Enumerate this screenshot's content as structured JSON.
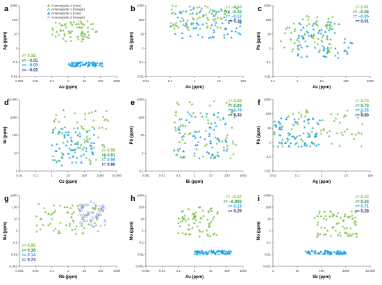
{
  "colors": {
    "arsenopyrite_1_core": "#7ac143",
    "arsenopyrite_1_margin": "#2e8b3a",
    "arsenopyrite_2_core": "#1ea0e6",
    "arsenopyrite_2_margin": "#7b8fd6",
    "r_blue_dark": "#2b3b8f"
  },
  "legend": [
    {
      "label": "Arsenopyrite 1 (core)",
      "marker": "triangle-filled",
      "color_key": "arsenopyrite_1_core"
    },
    {
      "label": "Arsenopyrite 1 (margin)",
      "marker": "triangle-outline",
      "color_key": "arsenopyrite_1_margin"
    },
    {
      "label": "Arsenopyrite 2 (core)",
      "marker": "triangle-filled",
      "color_key": "arsenopyrite_2_core"
    },
    {
      "label": "Arsenopyrite 2 (margin)",
      "marker": "triangle-outline",
      "color_key": "arsenopyrite_2_margin"
    }
  ],
  "chart_data": [
    {
      "panel": "a",
      "type": "scatter",
      "xlabel": "Au (ppm)",
      "ylabel": "Ag (ppm)",
      "log_x": true,
      "log_y": true,
      "x_ticks": [
        "0.001",
        "0.01",
        "0.1",
        "1",
        "10",
        "100",
        "1000"
      ],
      "y_ticks": [
        "0.01",
        "0.1",
        "1",
        "10",
        "100",
        "1000"
      ],
      "r_values": [
        "r= 0.38",
        "r= –0.05",
        "r= –0.09",
        "r= –0.02"
      ],
      "r_colors": [
        "arsenopyrite_1_core",
        "arsenopyrite_1_margin",
        "arsenopyrite_2_core",
        "r_blue_dark"
      ],
      "series": [
        {
          "name": "Arsenopyrite 1 (core)",
          "x_range": [
            0.1,
            60
          ],
          "y_range": [
            3,
            80
          ]
        },
        {
          "name": "Arsenopyrite 2 (core)",
          "x_range": [
            1,
            150
          ],
          "y_range": [
            0.05,
            0.1
          ]
        }
      ]
    },
    {
      "panel": "b",
      "type": "scatter",
      "xlabel": "Au (ppm)",
      "ylabel": "Sb (ppm)",
      "log_x": true,
      "log_y": true,
      "x_ticks": [
        "0.01",
        "0.1",
        "1",
        "10",
        "100"
      ],
      "y_ticks": [
        "0.01",
        "0.1",
        "1",
        "10",
        "100",
        "1000"
      ],
      "r_values": [
        "r= –0.44",
        "r= –0.32",
        "r= –0.12",
        "r=  0.35"
      ],
      "r_colors": [
        "arsenopyrite_1_core",
        "arsenopyrite_1_margin",
        "arsenopyrite_2_core",
        "r_blue_dark"
      ],
      "series": [
        {
          "name": "Arsenopyrite 1 (core)",
          "x_range": [
            0.1,
            20
          ],
          "y_range": [
            20,
            1000
          ]
        },
        {
          "name": "Arsenopyrite 2 (core)",
          "x_range": [
            0.1,
            100
          ],
          "y_range": [
            5,
            800
          ]
        }
      ]
    },
    {
      "panel": "c",
      "type": "scatter",
      "xlabel": "Au (ppm)",
      "ylabel": "Pb (ppm)",
      "log_x": true,
      "log_y": true,
      "x_ticks": [
        "0.1",
        "1",
        "10",
        "100",
        "1000"
      ],
      "y_ticks": [
        "0.01",
        "0.1",
        "1",
        "10",
        "100",
        "1000"
      ],
      "r_values": [
        "r=  0.41",
        "r= –0.08",
        "r= –0.05",
        "r=  0.01"
      ],
      "r_colors": [
        "arsenopyrite_1_core",
        "arsenopyrite_1_margin",
        "arsenopyrite_2_core",
        "r_blue_dark"
      ],
      "series": [
        {
          "name": "Arsenopyrite 1 (core)",
          "x_range": [
            0.2,
            30
          ],
          "y_range": [
            0.5,
            200
          ]
        },
        {
          "name": "Arsenopyrite 2 (core)",
          "x_range": [
            1,
            200
          ],
          "y_range": [
            0.2,
            100
          ]
        }
      ]
    },
    {
      "panel": "d",
      "type": "scatter",
      "xlabel": "Co (ppm)",
      "ylabel": "Ni (ppm)",
      "log_x": true,
      "log_y": true,
      "x_ticks": [
        "0.01",
        "0.1",
        "1",
        "10",
        "100",
        "1000",
        "10,000"
      ],
      "y_ticks": [
        "1",
        "10",
        "100",
        "1000",
        "10,000"
      ],
      "r_values": [
        "r= 0.90",
        "r= 0.81",
        "r= 0.66",
        "r= 0.80"
      ],
      "r_colors": [
        "arsenopyrite_1_core",
        "arsenopyrite_1_margin",
        "arsenopyrite_2_core",
        "r_blue_dark"
      ],
      "series": [
        {
          "name": "Arsenopyrite 1 (core)",
          "x_range": [
            1,
            3000
          ],
          "y_range": [
            3,
            3000
          ]
        },
        {
          "name": "Arsenopyrite 2 (core)",
          "x_range": [
            1,
            500
          ],
          "y_range": [
            2,
            300
          ]
        }
      ]
    },
    {
      "panel": "e",
      "type": "scatter",
      "xlabel": "Bi (ppm)",
      "ylabel": "Pb (ppm)",
      "log_x": true,
      "log_y": true,
      "x_ticks": [
        "0.001",
        "0.01",
        "0.1",
        "1",
        "10",
        "100",
        "1000"
      ],
      "y_ticks": [
        "0.1",
        "1",
        "10",
        "100",
        "1000"
      ],
      "r_values": [
        "r= 0.89",
        "r= 0.93",
        "r= 0.74",
        "r= 0.43"
      ],
      "r_colors": [
        "arsenopyrite_1_core",
        "arsenopyrite_1_margin",
        "arsenopyrite_2_core",
        "r_blue_dark"
      ],
      "series": [
        {
          "name": "Arsenopyrite 1 (core)",
          "x_range": [
            0.05,
            500
          ],
          "y_range": [
            0.5,
            1000
          ]
        },
        {
          "name": "Arsenopyrite 2 (core)",
          "x_range": [
            0.05,
            100
          ],
          "y_range": [
            0.5,
            200
          ]
        }
      ]
    },
    {
      "panel": "f",
      "type": "scatter",
      "xlabel": "Ag (ppm)",
      "ylabel": "Pb (ppm)",
      "log_x": true,
      "log_y": true,
      "x_ticks": [
        "0.01",
        "0.1",
        "1",
        "10",
        "100"
      ],
      "y_ticks": [
        "0.01",
        "0.1",
        "1",
        "10",
        "100",
        "1000"
      ],
      "r_values": [
        "r= 0.74",
        "r= 0.73",
        "r= 0.25",
        "r= 0.80"
      ],
      "r_colors": [
        "arsenopyrite_1_core",
        "arsenopyrite_1_margin",
        "arsenopyrite_2_core",
        "r_blue_dark"
      ],
      "series": [
        {
          "name": "Arsenopyrite 1 (core)",
          "x_range": [
            0.01,
            50
          ],
          "y_range": [
            0.5,
            300
          ]
        },
        {
          "name": "Arsenopyrite 2 (core)",
          "x_range": [
            0.01,
            1
          ],
          "y_range": [
            0.5,
            50
          ]
        }
      ]
    },
    {
      "panel": "g",
      "type": "scatter",
      "xlabel": "Rb (ppm)",
      "ylabel": "Ba (ppm)",
      "log_x": true,
      "log_y": true,
      "x_ticks": [
        "0.001",
        "0.01",
        "0.1",
        "1",
        "10",
        "100",
        "1000"
      ],
      "y_ticks": [
        "0.001",
        "0.01",
        "0.1",
        "1",
        "10",
        "100",
        "1000"
      ],
      "r_values": [
        "r= 0.95",
        "r= 0.36",
        "r= 0.14",
        "r= 0.74"
      ],
      "r_colors": [
        "arsenopyrite_1_core",
        "arsenopyrite_1_margin",
        "arsenopyrite_2_core",
        "r_blue_dark"
      ],
      "series": [
        {
          "name": "Arsenopyrite 1 (core)",
          "x_range": [
            0.01,
            100
          ],
          "y_range": [
            0.5,
            200
          ]
        },
        {
          "name": "Arsenopyrite 2 (margin)",
          "x_range": [
            5,
            200
          ],
          "y_range": [
            2,
            300
          ]
        }
      ]
    },
    {
      "panel": "h",
      "type": "scatter",
      "xlabel": "Au (ppm)",
      "ylabel": "Mo (ppm)",
      "log_x": true,
      "log_y": true,
      "x_ticks": [
        "0.001",
        "0.01",
        "0.1",
        "1",
        "10",
        "100",
        "1000"
      ],
      "y_ticks": [
        "0.001",
        "0.01",
        "0.1",
        "1",
        "10",
        "100",
        "1000"
      ],
      "r_values": [
        "r= –0.37",
        "r= –0.003",
        "r=  0.13",
        "r=  0.29"
      ],
      "r_colors": [
        "arsenopyrite_1_core",
        "arsenopyrite_1_margin",
        "arsenopyrite_2_core",
        "r_blue_dark"
      ],
      "series": [
        {
          "name": "Arsenopyrite 1 (core)",
          "x_range": [
            0.1,
            30
          ],
          "y_range": [
            0.3,
            100
          ]
        },
        {
          "name": "Arsenopyrite 2 (core)",
          "x_range": [
            1,
            200
          ],
          "y_range": [
            0.01,
            0.02
          ]
        }
      ]
    },
    {
      "panel": "i",
      "type": "scatter",
      "xlabel": "Sb (ppm)",
      "ylabel": "Mo (ppm)",
      "log_x": true,
      "log_y": true,
      "x_ticks": [
        "1",
        "10",
        "100",
        "1000",
        "10,000"
      ],
      "y_ticks": [
        "0.001",
        "0.01",
        "0.1",
        "1",
        "10",
        "100",
        "1000"
      ],
      "r_values": [
        "r= 0.23",
        "r= 0.24",
        "r= 0.71",
        "r= 0.28"
      ],
      "r_colors": [
        "arsenopyrite_1_core",
        "arsenopyrite_1_margin",
        "arsenopyrite_2_core",
        "r_blue_dark"
      ],
      "series": [
        {
          "name": "Arsenopyrite 1 (core)",
          "x_range": [
            50,
            3000
          ],
          "y_range": [
            0.3,
            50
          ]
        },
        {
          "name": "Arsenopyrite 2 (core)",
          "x_range": [
            20,
            1000
          ],
          "y_range": [
            0.01,
            0.02
          ]
        }
      ]
    }
  ]
}
